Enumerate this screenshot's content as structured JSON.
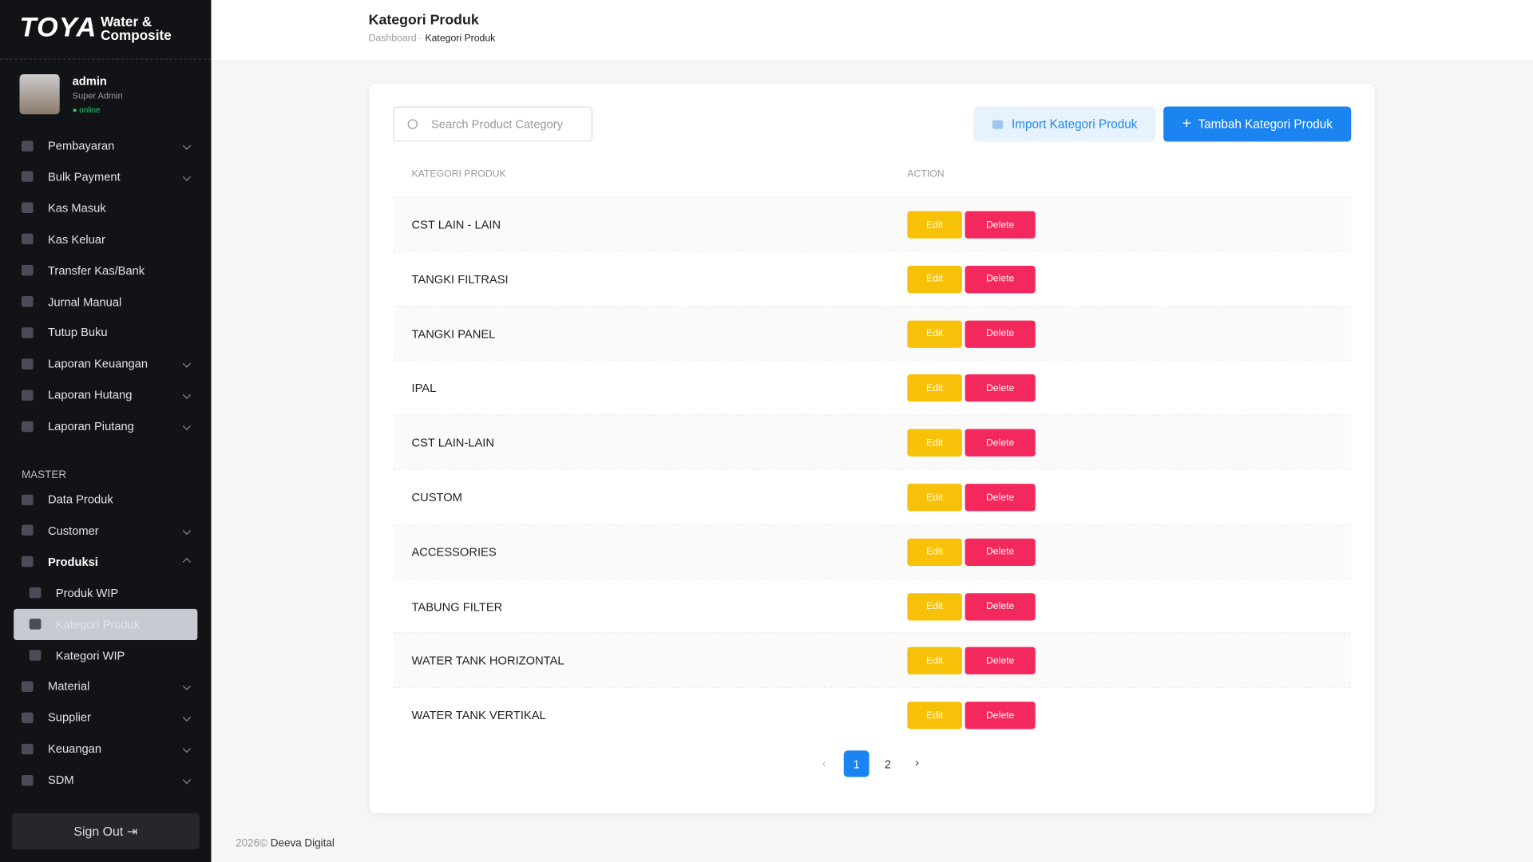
{
  "sidebar": {
    "brand": "TOYA",
    "brand_sub": [
      "Water &",
      "Composite"
    ],
    "user": {
      "name": "admin",
      "role": "Super Admin",
      "status": "online"
    },
    "menu": [
      {
        "label": "Pembayaran",
        "expandable": true
      },
      {
        "label": "Bulk Payment",
        "expandable": true
      },
      {
        "label": "Kas Masuk",
        "expandable": false
      },
      {
        "label": "Kas Keluar",
        "expandable": false
      },
      {
        "label": "Transfer Kas/Bank",
        "expandable": false
      },
      {
        "label": "Jurnal Manual",
        "expandable": false
      },
      {
        "label": "Tutup Buku",
        "expandable": false
      },
      {
        "label": "Laporan Keuangan",
        "expandable": true
      },
      {
        "label": "Laporan Hutang",
        "expandable": true
      },
      {
        "label": "Laporan Piutang",
        "expandable": true
      }
    ],
    "section": "MASTER",
    "master": [
      {
        "label": "Data Produk",
        "expandable": false
      },
      {
        "label": "Customer",
        "expandable": true
      },
      {
        "label": "Produksi",
        "expandable": true,
        "open": true,
        "children": [
          {
            "label": "Produk WIP"
          },
          {
            "label": "Kategori Produk",
            "active": true
          },
          {
            "label": "Kategori WIP"
          }
        ]
      },
      {
        "label": "Material",
        "expandable": true
      },
      {
        "label": "Supplier",
        "expandable": true
      },
      {
        "label": "Keuangan",
        "expandable": true
      },
      {
        "label": "SDM",
        "expandable": true
      }
    ],
    "sign_out": "Sign Out"
  },
  "header": {
    "title": "Kategori Produk",
    "breadcrumb": [
      "Dashboard",
      "Kategori Produk"
    ]
  },
  "toolbar": {
    "search_placeholder": "Search Product Category",
    "import": "Import Kategori Produk",
    "add": "Tambah Kategori Produk"
  },
  "table": {
    "columns": [
      "KATEGORI PRODUK",
      "ACTION"
    ],
    "actions": [
      "Edit",
      "Delete"
    ],
    "rows": [
      "CST LAIN - LAIN",
      "TANGKI FILTRASI",
      "TANGKI PANEL",
      "IPAL",
      "CST LAIN-LAIN",
      "CUSTOM",
      "ACCESSORIES",
      "TABUNG FILTER",
      "WATER TANK HORIZONTAL",
      "WATER TANK VERTIKAL"
    ]
  },
  "pagination": {
    "pages": [
      1,
      2
    ],
    "current": 1
  },
  "footer": {
    "year": "2026©",
    "company": "Deeva Digital"
  }
}
